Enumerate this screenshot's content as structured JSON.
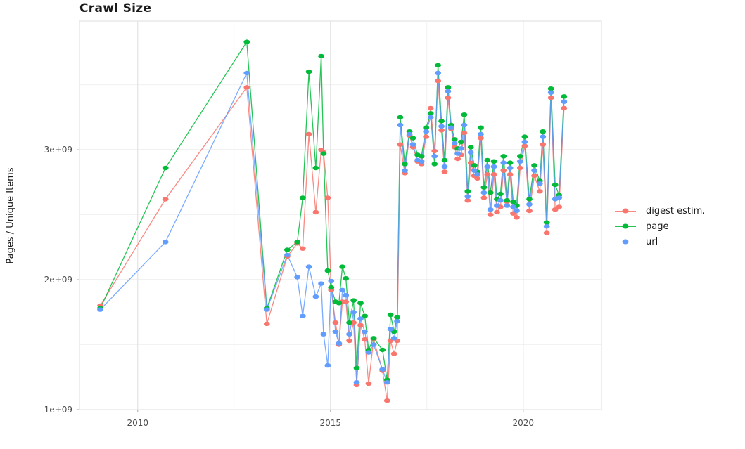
{
  "chart_data": {
    "type": "line",
    "title": "Crawl Size",
    "xlabel": "",
    "ylabel": "Pages / Unique Items",
    "grid": "on",
    "legend_position": "right",
    "x_range": [
      2008.49,
      2022.03
    ],
    "y_range_e9": [
      1.0,
      3.99
    ],
    "x_ticks": {
      "major_values": [
        2010,
        2015,
        2020
      ],
      "major_labels": [
        "2010",
        "2015",
        "2020"
      ],
      "minor_values": [
        2012.5,
        2017.5
      ]
    },
    "y_ticks": {
      "major_values_e9": [
        1,
        2,
        3
      ],
      "major_labels": [
        "1e+09",
        "2e+09",
        "3e+09"
      ],
      "minor_values_e9": [
        1.5,
        2.5,
        3.5
      ]
    },
    "x_years": [
      2009.03,
      2010.72,
      2012.83,
      2013.35,
      2013.88,
      2014.14,
      2014.28,
      2014.44,
      2014.62,
      2014.76,
      2014.82,
      2014.93,
      2015.02,
      2015.13,
      2015.22,
      2015.31,
      2015.4,
      2015.49,
      2015.6,
      2015.68,
      2015.78,
      2015.89,
      2015.99,
      2016.12,
      2016.35,
      2016.47,
      2016.56,
      2016.65,
      2016.73,
      2016.81,
      2016.93,
      2017.05,
      2017.14,
      2017.26,
      2017.36,
      2017.48,
      2017.6,
      2017.7,
      2017.79,
      2017.88,
      2017.96,
      2018.05,
      2018.13,
      2018.22,
      2018.3,
      2018.39,
      2018.47,
      2018.56,
      2018.64,
      2018.73,
      2018.81,
      2018.9,
      2018.98,
      2019.07,
      2019.15,
      2019.24,
      2019.32,
      2019.41,
      2019.49,
      2019.58,
      2019.66,
      2019.74,
      2019.83,
      2019.92,
      2020.04,
      2020.16,
      2020.29,
      2020.43,
      2020.51,
      2020.61,
      2020.72,
      2020.83,
      2020.93,
      2021.06
    ],
    "series": [
      {
        "name": "digest estim.",
        "color": "#F8766D",
        "values_e9": [
          1.8,
          2.62,
          3.48,
          1.66,
          2.18,
          2.28,
          2.24,
          3.12,
          2.52,
          3.0,
          2.98,
          2.63,
          1.92,
          1.67,
          1.5,
          1.83,
          1.83,
          1.53,
          1.67,
          1.19,
          1.65,
          1.54,
          1.2,
          1.54,
          1.3,
          1.07,
          1.53,
          1.43,
          1.53,
          3.04,
          2.82,
          3.11,
          3.02,
          2.91,
          2.89,
          3.1,
          3.32,
          2.99,
          3.53,
          3.15,
          2.83,
          3.4,
          3.16,
          3.02,
          2.93,
          2.96,
          3.13,
          2.61,
          2.9,
          2.8,
          2.78,
          3.09,
          2.63,
          2.81,
          2.5,
          2.81,
          2.52,
          2.56,
          2.84,
          2.6,
          2.81,
          2.51,
          2.48,
          2.86,
          3.03,
          2.53,
          2.8,
          2.68,
          3.04,
          2.36,
          3.4,
          2.54,
          2.56,
          3.32
        ]
      },
      {
        "name": "page",
        "color": "#00BA38",
        "values_e9": [
          1.78,
          2.86,
          3.83,
          1.78,
          2.23,
          2.29,
          2.63,
          3.6,
          2.86,
          3.72,
          2.97,
          2.07,
          1.94,
          1.83,
          1.82,
          2.1,
          2.01,
          1.67,
          1.84,
          1.32,
          1.82,
          1.72,
          1.46,
          1.55,
          1.46,
          1.23,
          1.73,
          1.6,
          1.71,
          3.25,
          2.89,
          3.14,
          3.09,
          2.96,
          2.95,
          3.17,
          3.28,
          2.89,
          3.65,
          3.22,
          2.92,
          3.48,
          3.19,
          3.08,
          3.01,
          3.06,
          3.27,
          2.68,
          3.02,
          2.88,
          2.83,
          3.17,
          2.71,
          2.92,
          2.67,
          2.91,
          2.62,
          2.66,
          2.95,
          2.61,
          2.9,
          2.6,
          2.57,
          2.95,
          3.1,
          2.62,
          2.88,
          2.76,
          3.14,
          2.44,
          3.47,
          2.73,
          2.65,
          3.41
        ]
      },
      {
        "name": "url",
        "color": "#619CFF",
        "values_e9": [
          1.77,
          2.29,
          3.59,
          1.77,
          2.19,
          2.02,
          1.72,
          2.1,
          1.87,
          1.97,
          1.58,
          1.34,
          1.99,
          1.6,
          1.51,
          1.92,
          1.88,
          1.58,
          1.75,
          1.21,
          1.7,
          1.6,
          1.44,
          1.5,
          1.31,
          1.21,
          1.62,
          1.55,
          1.68,
          3.19,
          2.84,
          3.12,
          3.04,
          2.92,
          2.91,
          3.14,
          3.25,
          2.95,
          3.59,
          3.18,
          2.87,
          3.45,
          3.17,
          3.05,
          2.97,
          3.01,
          3.19,
          2.64,
          2.98,
          2.84,
          2.81,
          3.12,
          2.67,
          2.87,
          2.54,
          2.87,
          2.57,
          2.61,
          2.9,
          2.57,
          2.86,
          2.56,
          2.53,
          2.91,
          3.06,
          2.58,
          2.84,
          2.74,
          3.1,
          2.41,
          3.44,
          2.62,
          2.63,
          3.37
        ]
      }
    ],
    "style": {
      "major_grid_color": "#e3e3e3",
      "minor_grid_color": "#f0f0f0",
      "panel_border_color": "#dedede",
      "tick_mark_color": "#b3b3b3",
      "tick_text_color": "#4d4d4d",
      "title_text_color": "#1a1a1a"
    }
  }
}
